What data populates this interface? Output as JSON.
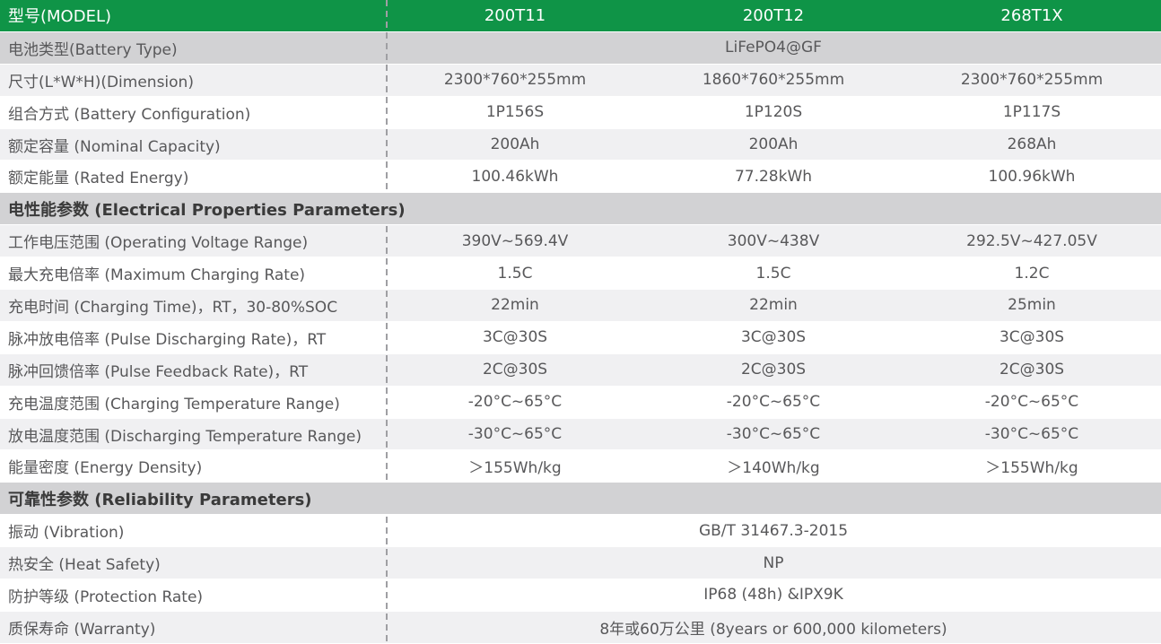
{
  "title": "Battery model specification table",
  "colors": {
    "header_green": "#0f9447",
    "section_gray": "#d2d2d4",
    "row_dark_gray": "#d2d2d4",
    "row_light_gray": "#f0f0f2",
    "text_gray": "#58585a",
    "header_text": "#ffffff"
  },
  "header": {
    "label": "型号(MODEL)",
    "models": [
      "200T11",
      "200T12",
      "268T1X"
    ]
  },
  "rows": [
    {
      "type": "span",
      "shade": "dark",
      "label": "电池类型(Battery Type)",
      "value": "LiFePO4@GF"
    },
    {
      "type": "data",
      "shade": "light",
      "label": "尺寸(L*W*H)(Dimension)",
      "values": [
        "2300*760*255mm",
        "1860*760*255mm",
        "2300*760*255mm"
      ]
    },
    {
      "type": "data",
      "shade": "white",
      "label": "组合方式 (Battery Configuration)",
      "values": [
        "1P156S",
        "1P120S",
        "1P117S"
      ]
    },
    {
      "type": "data",
      "shade": "light",
      "label": "额定容量 (Nominal Capacity)",
      "values": [
        "200Ah",
        "200Ah",
        "268Ah"
      ]
    },
    {
      "type": "data",
      "shade": "white",
      "label": "额定能量 (Rated Energy)",
      "values": [
        "100.46kWh",
        "77.28kWh",
        "100.96kWh"
      ]
    },
    {
      "type": "section",
      "shade": "dark",
      "label": "电性能参数 (Electrical Properties Parameters)"
    },
    {
      "type": "data",
      "shade": "light",
      "label": "工作电压范围 (Operating Voltage Range)",
      "values": [
        "390V~569.4V",
        "300V~438V",
        "292.5V~427.05V"
      ]
    },
    {
      "type": "data",
      "shade": "white",
      "label": "最大充电倍率 (Maximum Charging Rate)",
      "values": [
        "1.5C",
        "1.5C",
        "1.2C"
      ]
    },
    {
      "type": "data",
      "shade": "light",
      "label": "充电时间 (Charging Time)，RT，30-80%SOC",
      "values": [
        "22min",
        "22min",
        "25min"
      ]
    },
    {
      "type": "data",
      "shade": "white",
      "label": "脉冲放电倍率 (Pulse Discharging Rate)，RT",
      "values": [
        "3C@30S",
        "3C@30S",
        "3C@30S"
      ]
    },
    {
      "type": "data",
      "shade": "light",
      "label": "脉冲回馈倍率 (Pulse Feedback Rate)，RT",
      "values": [
        "2C@30S",
        "2C@30S",
        "2C@30S"
      ]
    },
    {
      "type": "data",
      "shade": "white",
      "label": "充电温度范围 (Charging Temperature Range)",
      "values": [
        "-20°C~65°C",
        "-20°C~65°C",
        "-20°C~65°C"
      ]
    },
    {
      "type": "data",
      "shade": "light",
      "label": "放电温度范围 (Discharging Temperature Range)",
      "values": [
        "-30°C~65°C",
        "-30°C~65°C",
        "-30°C~65°C"
      ]
    },
    {
      "type": "data",
      "shade": "white",
      "label": "能量密度 (Energy Density)",
      "values": [
        "＞155Wh/kg",
        "＞140Wh/kg",
        "＞155Wh/kg"
      ]
    },
    {
      "type": "section",
      "shade": "dark",
      "label": "可靠性参数 (Reliability Parameters)"
    },
    {
      "type": "span",
      "shade": "white",
      "label": "振动 (Vibration)",
      "value": "GB/T 31467.3-2015"
    },
    {
      "type": "span",
      "shade": "light",
      "label": "热安全 (Heat Safety)",
      "value": "NP"
    },
    {
      "type": "span",
      "shade": "white",
      "label": "防护等级 (Protection Rate)",
      "value": "IP68 (48h) &IPX9K"
    },
    {
      "type": "span",
      "shade": "light",
      "label": "质保寿命 (Warranty)",
      "value": "8年或60万公里 (8years  or 600,000 kilometers)"
    }
  ]
}
